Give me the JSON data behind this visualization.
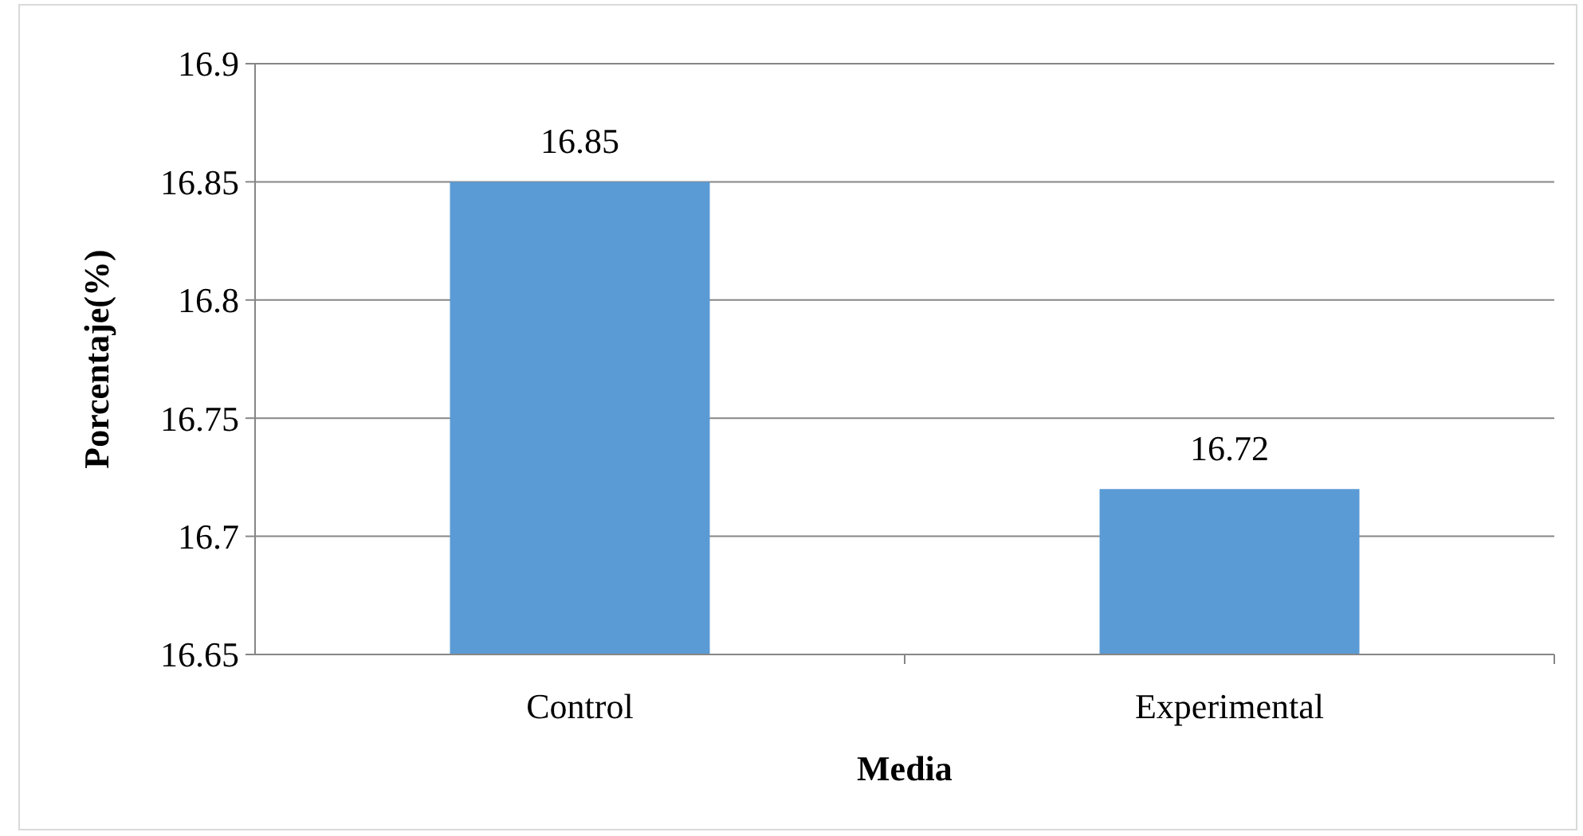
{
  "chart_data": {
    "type": "bar",
    "xlabel": "Media",
    "ylabel": "Porcentaje(%)",
    "categories": [
      "Control",
      "Experimental"
    ],
    "values": [
      16.85,
      16.72
    ],
    "color": "#5b9bd5",
    "ylim": [
      16.65,
      16.9
    ],
    "yticks": [
      16.65,
      16.7,
      16.75,
      16.8,
      16.85,
      16.9
    ],
    "grid": "y",
    "data_labels": true
  }
}
